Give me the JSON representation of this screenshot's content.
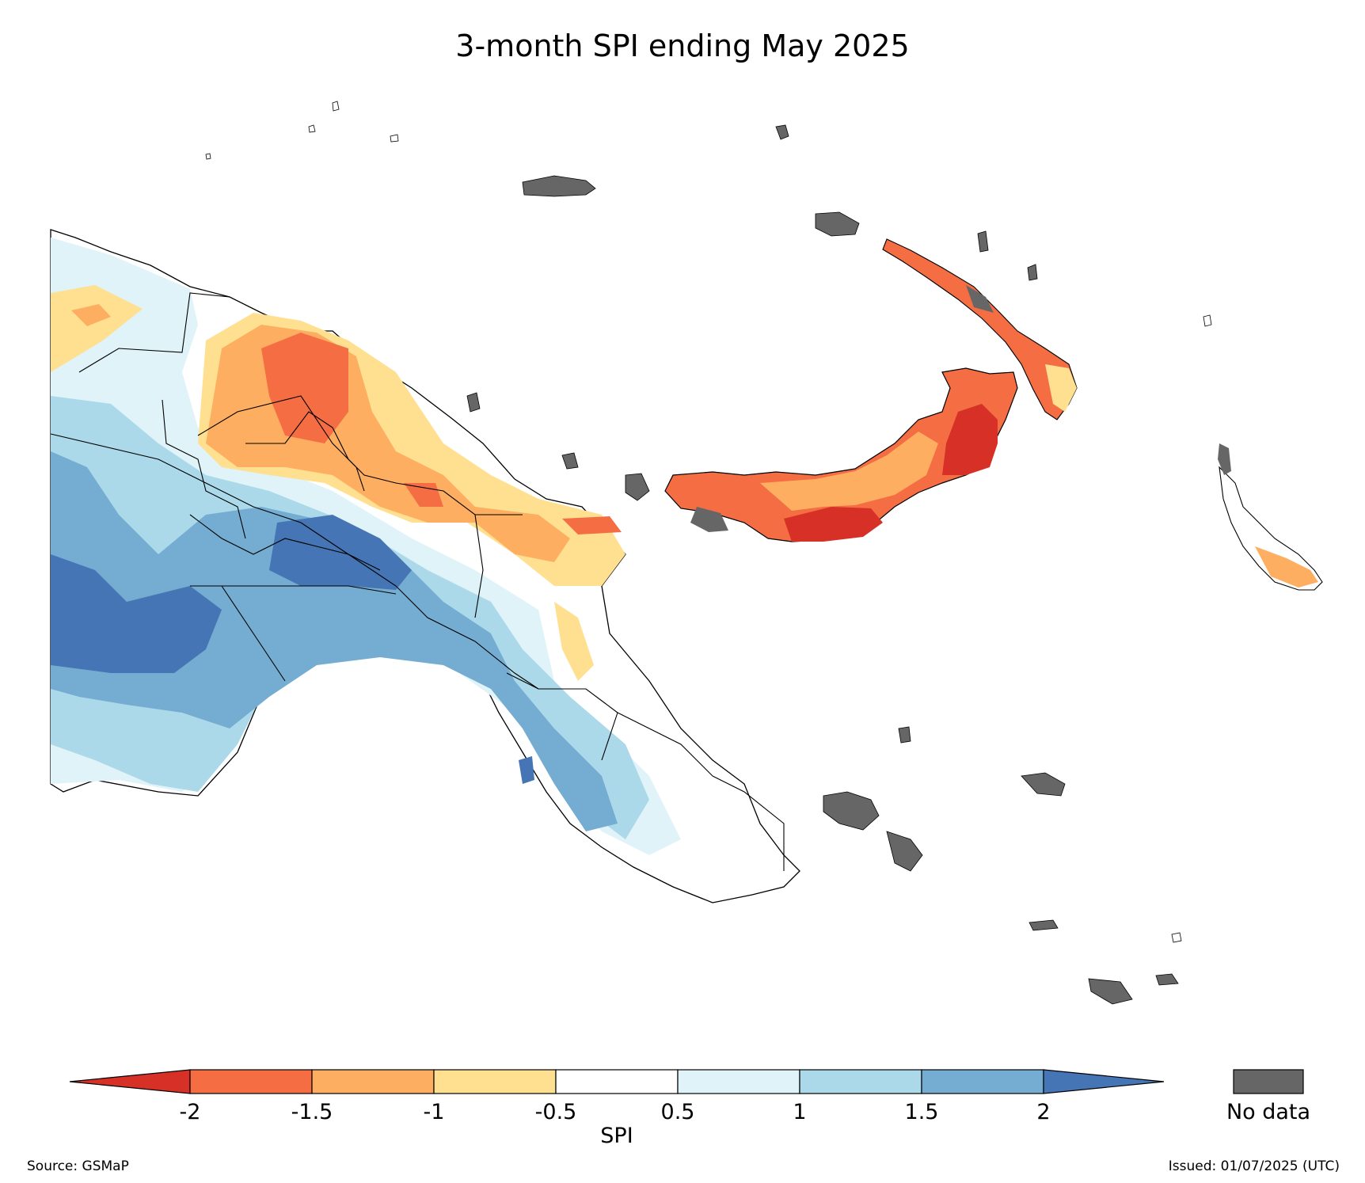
{
  "title": "3-month SPI ending May 2025",
  "colorbar": {
    "label": "SPI",
    "ticks": [
      "-2",
      "-1.5",
      "-1",
      "-0.5",
      "0.5",
      "1",
      "1.5",
      "2"
    ],
    "colors": {
      "below_-2": "#d73027",
      "-2_to_-1.5": "#f46d43",
      "-1.5_to_-1": "#fdae61",
      "-1_to_-0.5": "#fee090",
      "-0.5_to_0.5": "#ffffff",
      "0.5_to_1": "#e0f3f8",
      "1_to_1.5": "#abd9e9",
      "1.5_to_2": "#74add1",
      "above_2": "#4575b4"
    }
  },
  "no_data": {
    "label": "No data",
    "color": "#666666"
  },
  "source": "Source: GSMaP",
  "issued": "Issued: 01/07/2025 (UTC)"
}
